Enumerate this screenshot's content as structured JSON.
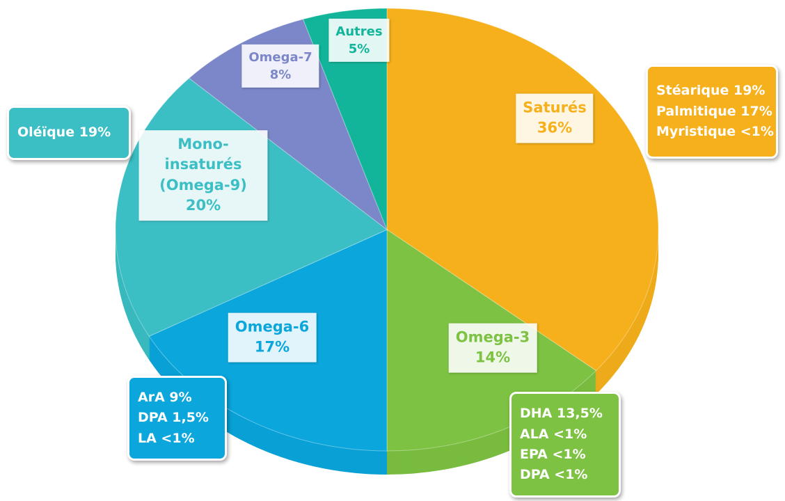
{
  "chart_data": {
    "type": "pie",
    "categories": [
      "Saturés",
      "Omega-3",
      "Omega-6",
      "Mono-insaturés (Omega-9)",
      "Omega-7",
      "Autres"
    ],
    "values": [
      36,
      14,
      17,
      20,
      8,
      5
    ],
    "value_labels": [
      "36%",
      "14%",
      "17%",
      "20%",
      "8%",
      "5%"
    ],
    "colors": [
      "#f5b01b",
      "#7dc242",
      "#0aa6dc",
      "#3bbfc4",
      "#7b87c8",
      "#12b59a"
    ],
    "callouts": [
      [
        "Stéarique 19%",
        "Palmitique 17%",
        "Myristique <1%"
      ],
      [
        "DHA 13,5%",
        "ALA <1%",
        "EPA <1%",
        "DPA <1%"
      ],
      [
        "ArA 9%",
        "DPA 1,5%",
        "LA <1%"
      ],
      [
        "Oléïque 19%"
      ]
    ]
  }
}
